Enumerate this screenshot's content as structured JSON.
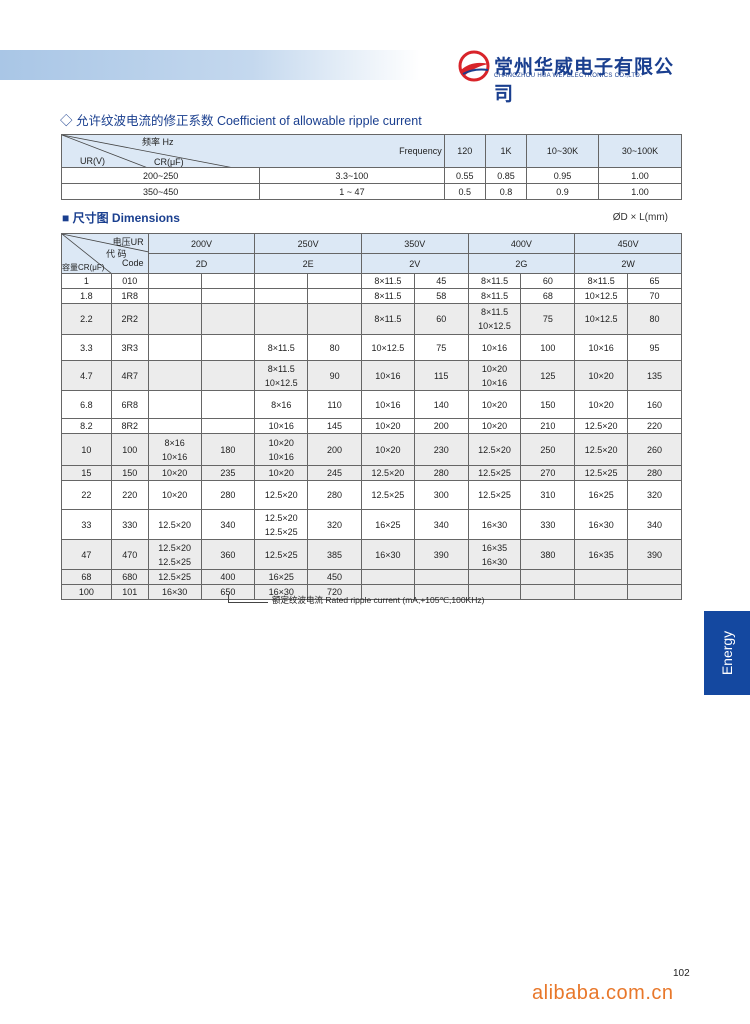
{
  "header": {
    "logo_cn": "常州华威电子有限公司",
    "logo_en": "CHANGZHOU HUA WEI ELECTRONICS CO.,LTD.",
    "brand_color": "#1a3f8f",
    "logo_accent": "#d8242a"
  },
  "ripple_section": {
    "title": "◇ 允许纹波电流的修正系数  Coefficient of allowable ripple current",
    "corner": {
      "freq_cn": "频率 Hz",
      "freq_en": "Frequency",
      "ur": "UR(V)",
      "cr": "CR(μF)"
    },
    "frequencies": [
      "120",
      "1K",
      "10~30K",
      "30~100K"
    ],
    "rows": [
      {
        "ur": "200~250",
        "cr": "3.3~100",
        "values": [
          "0.55",
          "0.85",
          "0.95",
          "1.00"
        ]
      },
      {
        "ur": "350~450",
        "cr": "1 ~ 47",
        "values": [
          "0.5",
          "0.8",
          "0.9",
          "1.00"
        ]
      }
    ]
  },
  "dims_section": {
    "title": "■ 尺寸图  Dimensions",
    "unit": "ØD × L(mm)",
    "corner": {
      "voltage": "电压UR",
      "code_cn": "代 码",
      "code_en": "Code",
      "cap": "容量CR(μF)"
    },
    "voltages": [
      {
        "v": "200V",
        "code": "2D"
      },
      {
        "v": "250V",
        "code": "2E"
      },
      {
        "v": "350V",
        "code": "2V"
      },
      {
        "v": "400V",
        "code": "2G"
      },
      {
        "v": "450V",
        "code": "2W"
      }
    ],
    "rows": [
      {
        "cap": "1",
        "code": "010",
        "shaded": false,
        "cells": [
          null,
          null,
          [
            "8×11.5",
            "45"
          ],
          [
            "8×11.5",
            "60"
          ],
          [
            "8×11.5",
            "65"
          ]
        ]
      },
      {
        "cap": "1.8",
        "code": "1R8",
        "shaded": false,
        "cells": [
          null,
          null,
          [
            "8×11.5",
            "58"
          ],
          [
            "8×11.5",
            "68"
          ],
          [
            "10×12.5",
            "70"
          ]
        ]
      },
      {
        "cap": "2.2",
        "code": "2R2",
        "shaded": true,
        "cells": [
          null,
          null,
          [
            "8×11.5",
            "60"
          ],
          [
            [
              "8×11.5",
              "10×12.5"
            ],
            "75"
          ],
          [
            "10×12.5",
            "80"
          ]
        ]
      },
      {
        "cap": "3.3",
        "code": "3R3",
        "shaded": false,
        "cells": [
          null,
          [
            "8×11.5",
            "80"
          ],
          [
            "10×12.5",
            "75"
          ],
          [
            "10×16",
            "100"
          ],
          [
            "10×16",
            "95"
          ]
        ]
      },
      {
        "cap": "4.7",
        "code": "4R7",
        "shaded": true,
        "cells": [
          null,
          [
            [
              "8×11.5",
              "10×12.5"
            ],
            "90"
          ],
          [
            "10×16",
            "115"
          ],
          [
            [
              "10×20",
              "10×16"
            ],
            "125"
          ],
          [
            "10×20",
            "135"
          ]
        ]
      },
      {
        "cap": "6.8",
        "code": "6R8",
        "shaded": false,
        "cells": [
          null,
          [
            "8×16",
            "110"
          ],
          [
            "10×16",
            "140"
          ],
          [
            "10×20",
            "150"
          ],
          [
            "10×20",
            "160"
          ]
        ]
      },
      {
        "cap": "8.2",
        "code": "8R2",
        "shaded": false,
        "cells": [
          null,
          [
            "10×16",
            "145"
          ],
          [
            "10×20",
            "200"
          ],
          [
            "10×20",
            "210"
          ],
          [
            "12.5×20",
            "220"
          ]
        ]
      },
      {
        "cap": "10",
        "code": "100",
        "shaded": true,
        "cells": [
          [
            [
              "8×16",
              "10×16"
            ],
            "180"
          ],
          [
            [
              "10×20",
              "10×16"
            ],
            "200"
          ],
          [
            "10×20",
            "230"
          ],
          [
            "12.5×20",
            "250"
          ],
          [
            "12.5×20",
            "260"
          ]
        ]
      },
      {
        "cap": "15",
        "code": "150",
        "shaded": true,
        "cells": [
          [
            "10×20",
            "235"
          ],
          [
            "10×20",
            "245"
          ],
          [
            "12.5×20",
            "280"
          ],
          [
            "12.5×25",
            "270"
          ],
          [
            "12.5×25",
            "280"
          ]
        ]
      },
      {
        "cap": "22",
        "code": "220",
        "shaded": false,
        "cells": [
          [
            "10×20",
            "280"
          ],
          [
            "12.5×20",
            "280"
          ],
          [
            "12.5×25",
            "300"
          ],
          [
            "12.5×25",
            "310"
          ],
          [
            "16×25",
            "320"
          ]
        ]
      },
      {
        "cap": "33",
        "code": "330",
        "shaded": false,
        "cells": [
          [
            "12.5×20",
            "340"
          ],
          [
            [
              "12.5×20",
              "12.5×25"
            ],
            "320"
          ],
          [
            "16×25",
            "340"
          ],
          [
            "16×30",
            "330"
          ],
          [
            "16×30",
            "340"
          ]
        ]
      },
      {
        "cap": "47",
        "code": "470",
        "shaded": true,
        "cells": [
          [
            [
              "12.5×20",
              "12.5×25"
            ],
            "360"
          ],
          [
            "12.5×25",
            "385"
          ],
          [
            "16×30",
            "390"
          ],
          [
            [
              "16×35",
              "16×30"
            ],
            "380"
          ],
          [
            "16×35",
            "390"
          ]
        ]
      },
      {
        "cap": "68",
        "code": "680",
        "shaded": true,
        "cells": [
          [
            "12.5×25",
            "400"
          ],
          [
            "16×25",
            "450"
          ],
          null,
          null,
          null
        ]
      },
      {
        "cap": "100",
        "code": "101",
        "shaded": true,
        "cells": [
          [
            "16×30",
            "650"
          ],
          [
            "16×30",
            "720"
          ],
          null,
          null,
          null
        ]
      }
    ],
    "note": "额定纹波电流 Rated ripple current (mA,+105℃,100KHz)"
  },
  "side_tab": {
    "label": "Energy",
    "color": "#1448a0"
  },
  "page_number": "102",
  "watermark": "alibaba.com.cn"
}
